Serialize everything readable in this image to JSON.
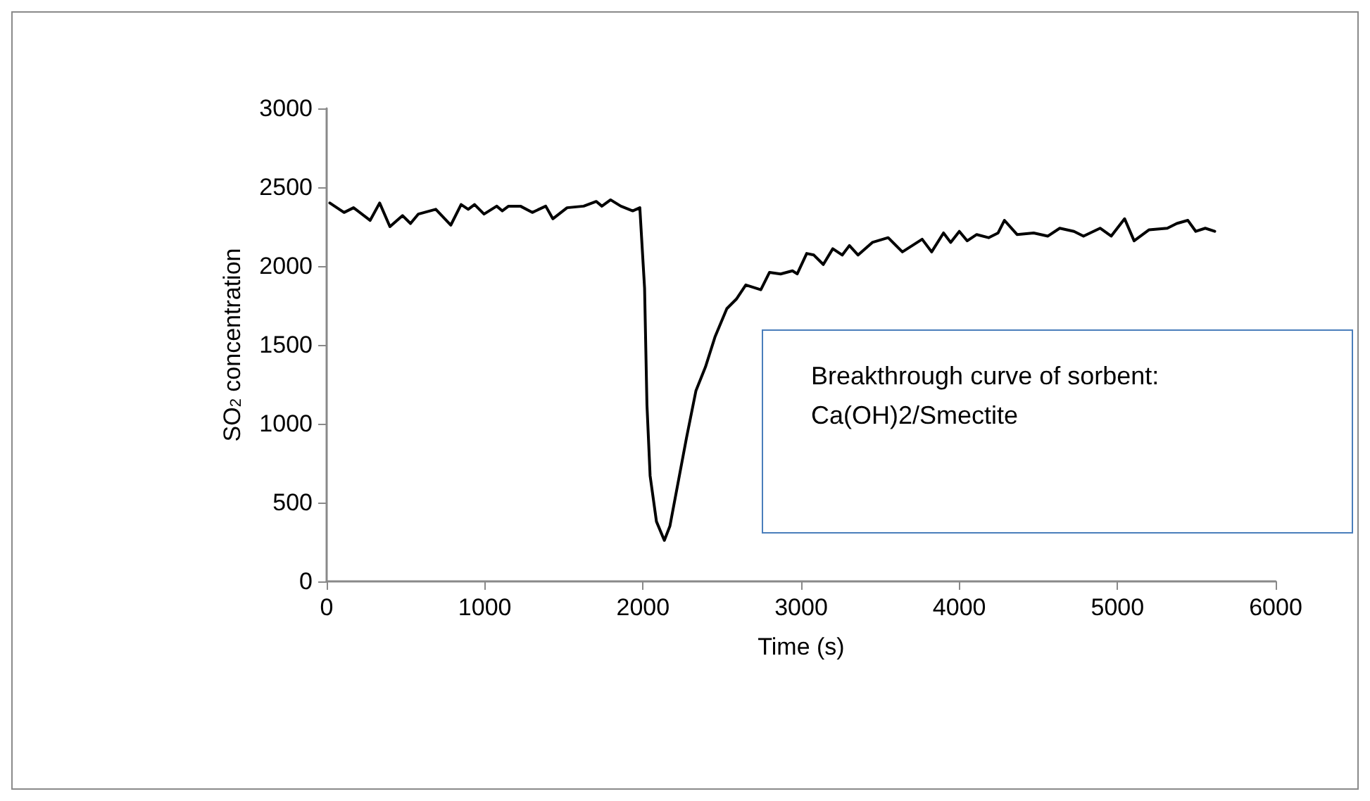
{
  "chart_data": {
    "type": "line",
    "xlabel": "Time (s)",
    "ylabel": "SO$_{2}$ concentration",
    "annotations": [
      "Breakthrough curve of sorbent:\nCa(OH)2/Smectite"
    ],
    "xlim": [
      0,
      6000
    ],
    "xticks": [
      0,
      1000,
      2000,
      3000,
      4000,
      5000,
      6000
    ],
    "ylim": [
      0,
      3000
    ],
    "yticks": [
      0,
      500,
      1000,
      1500,
      2000,
      2500,
      3000
    ],
    "grid": false,
    "marker": "none",
    "line_style": "solid",
    "series": [
      {
        "color": "#000000",
        "x": [
          20,
          110,
          170,
          275,
          335,
          400,
          480,
          530,
          580,
          690,
          785,
          850,
          895,
          935,
          995,
          1075,
          1110,
          1150,
          1225,
          1300,
          1385,
          1430,
          1520,
          1625,
          1705,
          1740,
          1795,
          1860,
          1935,
          1980,
          2010,
          2025,
          2045,
          2085,
          2135,
          2170,
          2230,
          2275,
          2335,
          2395,
          2455,
          2530,
          2590,
          2650,
          2745,
          2800,
          2870,
          2945,
          2975,
          3035,
          3080,
          3140,
          3200,
          3260,
          3305,
          3360,
          3450,
          3550,
          3640,
          3765,
          3825,
          3900,
          3945,
          4000,
          4050,
          4110,
          4185,
          4245,
          4285,
          4365,
          4470,
          4560,
          4635,
          4725,
          4785,
          4890,
          4960,
          5045,
          5105,
          5200,
          5315,
          5375,
          5445,
          5495,
          5555,
          5615
        ],
        "values": [
          2400,
          2340,
          2370,
          2290,
          2400,
          2250,
          2320,
          2270,
          2330,
          2360,
          2260,
          2390,
          2360,
          2390,
          2330,
          2380,
          2350,
          2380,
          2380,
          2340,
          2380,
          2300,
          2370,
          2380,
          2410,
          2380,
          2420,
          2380,
          2350,
          2370,
          1860,
          1120,
          670,
          380,
          260,
          350,
          670,
          910,
          1210,
          1360,
          1550,
          1730,
          1790,
          1880,
          1850,
          1960,
          1950,
          1970,
          1950,
          2080,
          2070,
          2010,
          2110,
          2070,
          2130,
          2070,
          2150,
          2180,
          2090,
          2170,
          2090,
          2210,
          2150,
          2220,
          2160,
          2200,
          2180,
          2210,
          2290,
          2200,
          2210,
          2190,
          2240,
          2220,
          2190,
          2240,
          2190,
          2300,
          2160,
          2230,
          2240,
          2270,
          2290,
          2220,
          2240,
          2220
        ]
      }
    ]
  }
}
